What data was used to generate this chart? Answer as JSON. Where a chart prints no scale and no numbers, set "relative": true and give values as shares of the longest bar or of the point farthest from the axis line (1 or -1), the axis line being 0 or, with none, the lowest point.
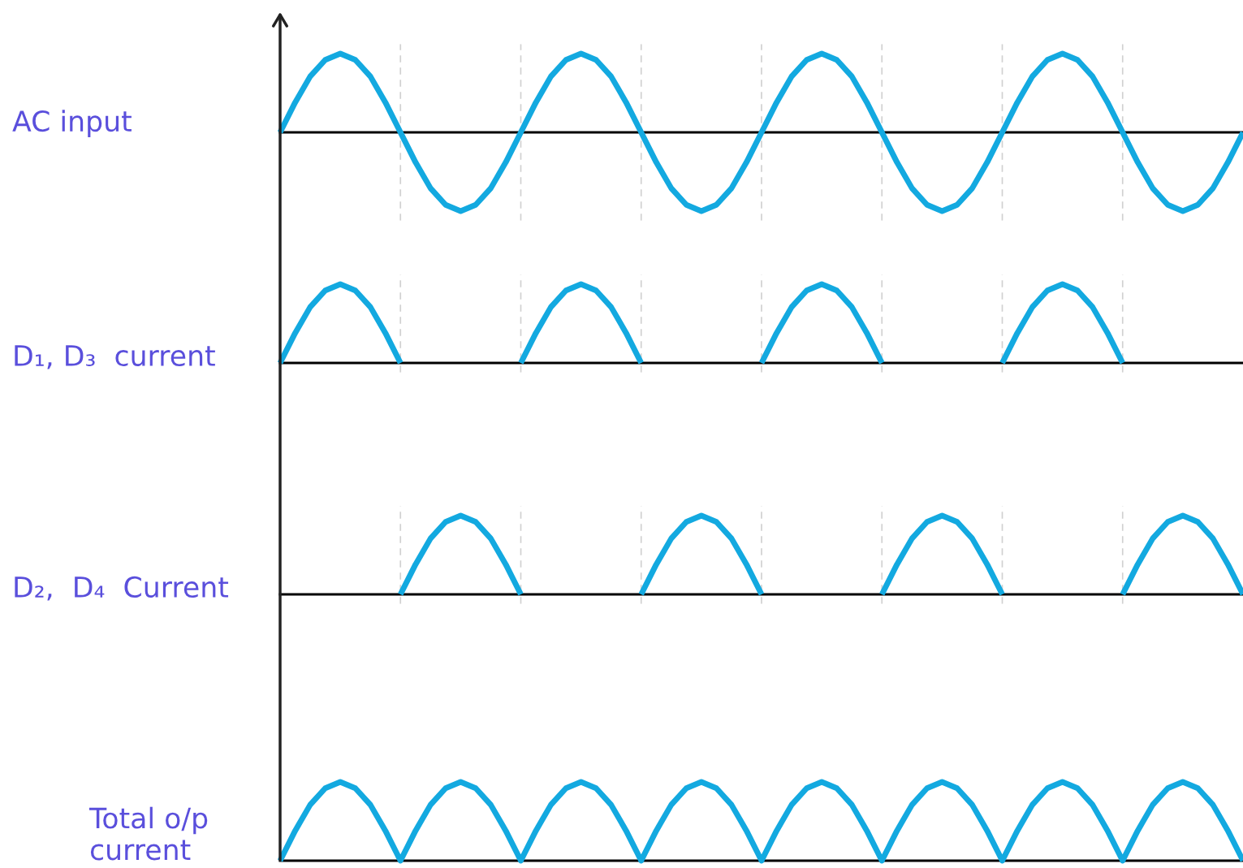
{
  "chart_data": [
    {
      "type": "line",
      "relative": true,
      "ylabel": "AC input",
      "grid": "x",
      "marker": "none",
      "line_style": "solid",
      "categories": [
        null,
        null,
        null,
        null,
        null,
        null,
        null,
        null,
        null,
        null,
        null,
        null,
        null,
        null,
        null,
        null,
        null,
        null,
        null,
        null,
        null,
        null,
        null,
        null,
        null,
        null,
        null,
        null,
        null,
        null,
        null,
        null,
        null,
        null,
        null,
        null,
        null,
        null,
        null,
        null,
        null,
        null,
        null,
        null,
        null,
        null,
        null,
        null,
        null,
        null,
        null,
        null,
        null,
        null,
        null,
        null,
        null,
        null,
        null,
        null,
        null,
        null,
        null,
        null,
        null
      ],
      "series": [
        {
          "color": "#13a9e0",
          "values": [
            0,
            0.38,
            0.71,
            0.92,
            1,
            0.92,
            0.71,
            0.38,
            0,
            -0.38,
            -0.71,
            -0.92,
            -1,
            -0.92,
            -0.71,
            -0.38,
            0,
            0.38,
            0.71,
            0.92,
            1,
            0.92,
            0.71,
            0.38,
            0,
            -0.38,
            -0.71,
            -0.92,
            -1,
            -0.92,
            -0.71,
            -0.38,
            0,
            0.38,
            0.71,
            0.92,
            1,
            0.92,
            0.71,
            0.38,
            0,
            -0.38,
            -0.71,
            -0.92,
            -1,
            -0.92,
            -0.71,
            -0.38,
            0,
            0.38,
            0.71,
            0.92,
            1,
            0.92,
            0.71,
            0.38,
            0,
            -0.38,
            -0.71,
            -0.92,
            -1,
            -0.92,
            -0.71,
            -0.38,
            0
          ]
        }
      ]
    },
    {
      "type": "line",
      "relative": true,
      "ylabel": "D₁, D₃  current",
      "grid": "x",
      "marker": "none",
      "line_style": "solid",
      "categories": [
        null,
        null,
        null,
        null,
        null,
        null,
        null,
        null,
        null,
        null,
        null,
        null,
        null,
        null,
        null,
        null,
        null,
        null,
        null,
        null,
        null,
        null,
        null,
        null,
        null,
        null,
        null,
        null,
        null,
        null,
        null,
        null,
        null,
        null,
        null,
        null,
        null,
        null,
        null,
        null,
        null,
        null,
        null,
        null,
        null,
        null,
        null,
        null,
        null,
        null,
        null,
        null,
        null,
        null,
        null,
        null,
        null,
        null,
        null,
        null,
        null,
        null,
        null,
        null,
        null
      ],
      "series": [
        {
          "color": "#13a9e0",
          "values": [
            0,
            0.38,
            0.71,
            0.92,
            1,
            0.92,
            0.71,
            0.38,
            0,
            null,
            null,
            null,
            null,
            null,
            null,
            null,
            0,
            0.38,
            0.71,
            0.92,
            1,
            0.92,
            0.71,
            0.38,
            0,
            null,
            null,
            null,
            null,
            null,
            null,
            null,
            0,
            0.38,
            0.71,
            0.92,
            1,
            0.92,
            0.71,
            0.38,
            0,
            null,
            null,
            null,
            null,
            null,
            null,
            null,
            0,
            0.38,
            0.71,
            0.92,
            1,
            0.92,
            0.71,
            0.38,
            0,
            null,
            null,
            null,
            null,
            null,
            null,
            null,
            null
          ]
        }
      ]
    },
    {
      "type": "line",
      "relative": true,
      "ylabel": "D₂,  D₄  Current",
      "grid": "x",
      "marker": "none",
      "line_style": "solid",
      "categories": [
        null,
        null,
        null,
        null,
        null,
        null,
        null,
        null,
        null,
        null,
        null,
        null,
        null,
        null,
        null,
        null,
        null,
        null,
        null,
        null,
        null,
        null,
        null,
        null,
        null,
        null,
        null,
        null,
        null,
        null,
        null,
        null,
        null,
        null,
        null,
        null,
        null,
        null,
        null,
        null,
        null,
        null,
        null,
        null,
        null,
        null,
        null,
        null,
        null,
        null,
        null,
        null,
        null,
        null,
        null,
        null,
        null,
        null,
        null,
        null,
        null,
        null,
        null,
        null,
        null
      ],
      "series": [
        {
          "color": "#13a9e0",
          "values": [
            null,
            null,
            null,
            null,
            null,
            null,
            null,
            null,
            0,
            0.38,
            0.71,
            0.92,
            1,
            0.92,
            0.71,
            0.38,
            0,
            null,
            null,
            null,
            null,
            null,
            null,
            null,
            0,
            0.38,
            0.71,
            0.92,
            1,
            0.92,
            0.71,
            0.38,
            0,
            null,
            null,
            null,
            null,
            null,
            null,
            null,
            0,
            0.38,
            0.71,
            0.92,
            1,
            0.92,
            0.71,
            0.38,
            0,
            null,
            null,
            null,
            null,
            null,
            null,
            null,
            0,
            0.38,
            0.71,
            0.92,
            1,
            0.92,
            0.71,
            0.38,
            0
          ]
        }
      ]
    },
    {
      "type": "line",
      "relative": true,
      "ylabel": "Total o/p\ncurrent",
      "marker": "none",
      "line_style": "solid",
      "categories": [
        null,
        null,
        null,
        null,
        null,
        null,
        null,
        null,
        null,
        null,
        null,
        null,
        null,
        null,
        null,
        null,
        null,
        null,
        null,
        null,
        null,
        null,
        null,
        null,
        null,
        null,
        null,
        null,
        null,
        null,
        null,
        null,
        null,
        null,
        null,
        null,
        null,
        null,
        null,
        null,
        null,
        null,
        null,
        null,
        null,
        null,
        null,
        null,
        null,
        null,
        null,
        null,
        null,
        null,
        null,
        null,
        null,
        null,
        null,
        null,
        null,
        null,
        null,
        null,
        null
      ],
      "series": [
        {
          "color": "#13a9e0",
          "values": [
            0,
            0.38,
            0.71,
            0.92,
            1,
            0.92,
            0.71,
            0.38,
            0,
            0.38,
            0.71,
            0.92,
            1,
            0.92,
            0.71,
            0.38,
            0,
            0.38,
            0.71,
            0.92,
            1,
            0.92,
            0.71,
            0.38,
            0,
            0.38,
            0.71,
            0.92,
            1,
            0.92,
            0.71,
            0.38,
            0,
            0.38,
            0.71,
            0.92,
            1,
            0.92,
            0.71,
            0.38,
            0,
            0.38,
            0.71,
            0.92,
            1,
            0.92,
            0.71,
            0.38,
            0,
            0.38,
            0.71,
            0.92,
            1,
            0.92,
            0.71,
            0.38,
            0,
            0.38,
            0.71,
            0.92,
            1,
            0.92,
            0.71,
            0.38,
            0
          ]
        }
      ]
    }
  ]
}
